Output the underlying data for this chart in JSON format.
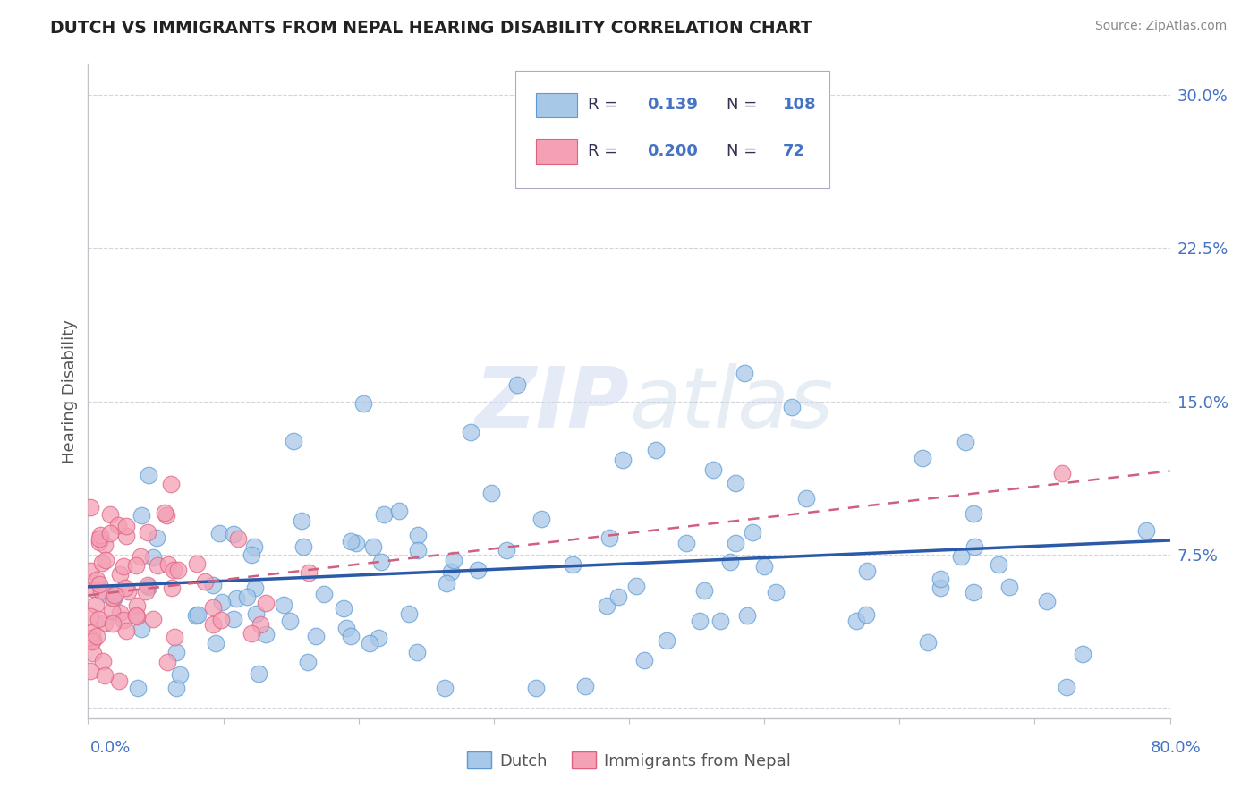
{
  "title": "DUTCH VS IMMIGRANTS FROM NEPAL HEARING DISABILITY CORRELATION CHART",
  "source": "Source: ZipAtlas.com",
  "ylabel": "Hearing Disability",
  "xlim": [
    0.0,
    0.8
  ],
  "ylim": [
    -0.005,
    0.315
  ],
  "yticks": [
    0.0,
    0.075,
    0.15,
    0.225,
    0.3
  ],
  "ytick_labels": [
    "",
    "7.5%",
    "15.0%",
    "22.5%",
    "30.0%"
  ],
  "dutch_color": "#A8C8E8",
  "dutch_edge_color": "#5B9BD5",
  "nepal_color": "#F4A0B5",
  "nepal_edge_color": "#E06080",
  "dutch_R": 0.139,
  "dutch_N": 108,
  "nepal_R": 0.2,
  "nepal_N": 72,
  "legend_label_dutch": "Dutch",
  "legend_label_nepal": "Immigrants from Nepal",
  "dutch_trend_color": "#2B5BA8",
  "nepal_trend_color": "#D06080",
  "grid_color": "#C8C8D0",
  "border_color": "#C0C0C8"
}
